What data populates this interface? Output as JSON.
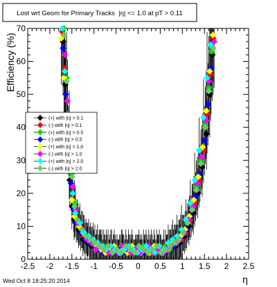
{
  "chart_data": {
    "type": "scatter",
    "title": "Lost wrt Geom for Primary Tracks  |η| <= 1.0 at pT > 0.11",
    "xlabel": "η",
    "ylabel": "Efficiency (%)",
    "xlim": [
      -2.5,
      2.5
    ],
    "ylim": [
      0,
      70
    ],
    "xticks": [
      "-2.5",
      "-2",
      "-1.5",
      "-1",
      "-0.5",
      "0",
      "0.5",
      "1",
      "1.5",
      "2",
      "2.5"
    ],
    "yticks": [
      "0",
      "10",
      "20",
      "30",
      "40",
      "50",
      "60",
      "70"
    ],
    "legend_position": "left-middle",
    "footer": "Wed Oct  8 18:25:20 2014",
    "series": [
      {
        "name": "(+) with |η| > 0.1",
        "color": "#000000",
        "points": [
          [
            -1.7,
            66
          ],
          [
            -1.65,
            53
          ],
          [
            -1.6,
            38
          ],
          [
            -1.55,
            24
          ],
          [
            -1.5,
            16
          ],
          [
            -1.45,
            12
          ],
          [
            -1.35,
            9
          ],
          [
            -1.25,
            6
          ],
          [
            -1.15,
            5
          ],
          [
            -1.05,
            4
          ],
          [
            -0.95,
            3
          ],
          [
            -0.85,
            4
          ],
          [
            -0.75,
            3
          ],
          [
            -0.65,
            2
          ],
          [
            -0.55,
            3
          ],
          [
            -0.45,
            2
          ],
          [
            -0.35,
            3
          ],
          [
            -0.25,
            2
          ],
          [
            -0.15,
            3
          ],
          [
            -0.05,
            2
          ],
          [
            0.05,
            3
          ],
          [
            0.15,
            2
          ],
          [
            0.25,
            3
          ],
          [
            0.35,
            2
          ],
          [
            0.45,
            3
          ],
          [
            0.55,
            2
          ],
          [
            0.65,
            3
          ],
          [
            0.75,
            3
          ],
          [
            0.85,
            4
          ],
          [
            0.95,
            5
          ],
          [
            1.05,
            7
          ],
          [
            1.15,
            10
          ],
          [
            1.25,
            14
          ],
          [
            1.35,
            20
          ],
          [
            1.45,
            28
          ],
          [
            1.55,
            38
          ],
          [
            1.62,
            50
          ],
          [
            1.68,
            62
          ]
        ]
      },
      {
        "name": "(-) with |η| > 0.1",
        "color": "#ff0000",
        "points": [
          [
            -1.72,
            69
          ],
          [
            -1.66,
            58
          ],
          [
            -1.6,
            42
          ],
          [
            -1.54,
            28
          ],
          [
            -1.48,
            18
          ],
          [
            -1.42,
            13
          ],
          [
            -1.32,
            10
          ],
          [
            -1.22,
            7
          ],
          [
            -1.12,
            6
          ],
          [
            -1.02,
            5
          ],
          [
            -0.92,
            4
          ],
          [
            -0.82,
            3
          ],
          [
            -0.72,
            4
          ],
          [
            -0.62,
            3
          ],
          [
            -0.52,
            2
          ],
          [
            -0.42,
            3
          ],
          [
            -0.32,
            2
          ],
          [
            -0.22,
            3
          ],
          [
            -0.12,
            2
          ],
          [
            -0.02,
            3
          ],
          [
            0.08,
            2
          ],
          [
            0.18,
            3
          ],
          [
            0.28,
            2
          ],
          [
            0.38,
            3
          ],
          [
            0.48,
            2
          ],
          [
            0.58,
            4
          ],
          [
            0.68,
            3
          ],
          [
            0.78,
            4
          ],
          [
            0.88,
            5
          ],
          [
            0.98,
            6
          ],
          [
            1.08,
            8
          ],
          [
            1.18,
            12
          ],
          [
            1.28,
            17
          ],
          [
            1.38,
            24
          ],
          [
            1.48,
            33
          ],
          [
            1.56,
            44
          ],
          [
            1.64,
            56
          ],
          [
            1.7,
            67
          ]
        ]
      },
      {
        "name": "(+) with |η| > 0.5",
        "color": "#00dd00",
        "points": [
          [
            -1.68,
            70
          ],
          [
            -1.62,
            55
          ],
          [
            -1.56,
            40
          ],
          [
            -1.5,
            26
          ],
          [
            -1.44,
            17
          ],
          [
            -1.38,
            12
          ],
          [
            -1.28,
            9
          ],
          [
            -1.18,
            7
          ],
          [
            -1.08,
            5
          ],
          [
            -0.98,
            4
          ],
          [
            -0.88,
            3
          ],
          [
            -0.78,
            4
          ],
          [
            -0.68,
            3
          ],
          [
            -0.58,
            2
          ],
          [
            -0.48,
            3
          ],
          [
            -0.38,
            4
          ],
          [
            -0.28,
            2
          ],
          [
            -0.18,
            3
          ],
          [
            -0.08,
            2
          ],
          [
            0.02,
            3
          ],
          [
            0.12,
            4
          ],
          [
            0.22,
            2
          ],
          [
            0.32,
            3
          ],
          [
            0.42,
            2
          ],
          [
            0.52,
            3
          ],
          [
            0.62,
            4
          ],
          [
            0.72,
            3
          ],
          [
            0.82,
            5
          ],
          [
            0.92,
            6
          ],
          [
            1.02,
            8
          ],
          [
            1.12,
            11
          ],
          [
            1.22,
            16
          ],
          [
            1.32,
            22
          ],
          [
            1.42,
            30
          ],
          [
            1.52,
            41
          ],
          [
            1.6,
            52
          ],
          [
            1.66,
            63
          ]
        ]
      },
      {
        "name": "(-) with |η| > 0.5",
        "color": "#0000ff",
        "points": [
          [
            -1.7,
            64
          ],
          [
            -1.64,
            50
          ],
          [
            -1.58,
            36
          ],
          [
            -1.52,
            23
          ],
          [
            -1.46,
            15
          ],
          [
            -1.4,
            11
          ],
          [
            -1.3,
            8
          ],
          [
            -1.2,
            6
          ],
          [
            -1.1,
            5
          ],
          [
            -1.0,
            4
          ],
          [
            -0.9,
            3
          ],
          [
            -0.8,
            2
          ],
          [
            -0.7,
            3
          ],
          [
            -0.6,
            4
          ],
          [
            -0.5,
            2
          ],
          [
            -0.4,
            3
          ],
          [
            -0.3,
            2
          ],
          [
            -0.2,
            3
          ],
          [
            -0.1,
            2
          ],
          [
            0.0,
            3
          ],
          [
            0.1,
            2
          ],
          [
            0.2,
            3
          ],
          [
            0.3,
            4
          ],
          [
            0.4,
            2
          ],
          [
            0.5,
            3
          ],
          [
            0.6,
            2
          ],
          [
            0.7,
            4
          ],
          [
            0.8,
            4
          ],
          [
            0.9,
            5
          ],
          [
            1.0,
            7
          ],
          [
            1.1,
            9
          ],
          [
            1.2,
            13
          ],
          [
            1.3,
            19
          ],
          [
            1.4,
            26
          ],
          [
            1.5,
            36
          ],
          [
            1.58,
            47
          ],
          [
            1.65,
            58
          ]
        ]
      },
      {
        "name": "(+) with |η| > 1.0",
        "color": "#ffff00",
        "points": [
          [
            -1.74,
            67
          ],
          [
            -1.68,
            55
          ],
          [
            -1.62,
            41
          ],
          [
            -1.56,
            27
          ],
          [
            -1.5,
            18
          ],
          [
            -1.44,
            13
          ],
          [
            -1.34,
            10
          ],
          [
            -1.24,
            8
          ],
          [
            -1.14,
            6
          ],
          [
            -1.04,
            5
          ],
          [
            -0.94,
            4
          ],
          [
            -0.84,
            3
          ],
          [
            -0.74,
            2
          ],
          [
            -0.64,
            3
          ],
          [
            -0.54,
            4
          ],
          [
            -0.44,
            2
          ],
          [
            -0.34,
            3
          ],
          [
            -0.24,
            2
          ],
          [
            -0.14,
            4
          ],
          [
            -0.04,
            3
          ],
          [
            0.06,
            2
          ],
          [
            0.16,
            3
          ],
          [
            0.26,
            2
          ],
          [
            0.36,
            4
          ],
          [
            0.46,
            3
          ],
          [
            0.56,
            2
          ],
          [
            0.66,
            3
          ],
          [
            0.76,
            5
          ],
          [
            0.86,
            5
          ],
          [
            0.96,
            7
          ],
          [
            1.06,
            9
          ],
          [
            1.16,
            13
          ],
          [
            1.26,
            18
          ],
          [
            1.36,
            25
          ],
          [
            1.46,
            34
          ],
          [
            1.54,
            45
          ],
          [
            1.62,
            57
          ],
          [
            1.69,
            68
          ]
        ]
      },
      {
        "name": "(-) with |η| > 1.0",
        "color": "#ff00ff",
        "points": [
          [
            -1.66,
            62
          ],
          [
            -1.6,
            48
          ],
          [
            -1.54,
            34
          ],
          [
            -1.48,
            22
          ],
          [
            -1.42,
            15
          ],
          [
            -1.36,
            11
          ],
          [
            -1.26,
            9
          ],
          [
            -1.16,
            6
          ],
          [
            -1.06,
            5
          ],
          [
            -0.96,
            3
          ],
          [
            -0.86,
            4
          ],
          [
            -0.76,
            3
          ],
          [
            -0.66,
            2
          ],
          [
            -0.56,
            3
          ],
          [
            -0.46,
            2
          ],
          [
            -0.36,
            4
          ],
          [
            -0.26,
            3
          ],
          [
            -0.16,
            2
          ],
          [
            -0.06,
            3
          ],
          [
            0.04,
            2
          ],
          [
            0.14,
            3
          ],
          [
            0.24,
            4
          ],
          [
            0.34,
            2
          ],
          [
            0.44,
            3
          ],
          [
            0.54,
            2
          ],
          [
            0.64,
            3
          ],
          [
            0.74,
            4
          ],
          [
            0.84,
            5
          ],
          [
            0.94,
            6
          ],
          [
            1.04,
            8
          ],
          [
            1.14,
            12
          ],
          [
            1.24,
            16
          ],
          [
            1.34,
            23
          ],
          [
            1.44,
            31
          ],
          [
            1.54,
            42
          ],
          [
            1.6,
            54
          ],
          [
            1.72,
            66
          ]
        ]
      },
      {
        "name": "(+) with |η| > 2.0",
        "color": "#00ffff",
        "points": [
          [
            -1.72,
            70
          ],
          [
            -1.66,
            57
          ],
          [
            -1.6,
            44
          ],
          [
            -1.54,
            30
          ],
          [
            -1.48,
            20
          ],
          [
            -1.42,
            14
          ],
          [
            -1.32,
            11
          ],
          [
            -1.22,
            8
          ],
          [
            -1.12,
            7
          ],
          [
            -1.02,
            6
          ],
          [
            -0.92,
            5
          ],
          [
            -0.82,
            4
          ],
          [
            -0.72,
            3
          ],
          [
            -0.62,
            4
          ],
          [
            -0.52,
            3
          ],
          [
            -0.42,
            2
          ],
          [
            -0.32,
            3
          ],
          [
            -0.22,
            4
          ],
          [
            -0.12,
            3
          ],
          [
            -0.02,
            2
          ],
          [
            0.08,
            3
          ],
          [
            0.18,
            4
          ],
          [
            0.28,
            3
          ],
          [
            0.38,
            2
          ],
          [
            0.48,
            4
          ],
          [
            0.58,
            3
          ],
          [
            0.68,
            5
          ],
          [
            0.78,
            6
          ],
          [
            0.88,
            7
          ],
          [
            0.98,
            9
          ],
          [
            1.08,
            12
          ],
          [
            1.18,
            17
          ],
          [
            1.28,
            24
          ],
          [
            1.38,
            33
          ],
          [
            1.48,
            43
          ],
          [
            1.56,
            55
          ],
          [
            1.64,
            65
          ]
        ]
      },
      {
        "name": "(-) with |η| > 2.0",
        "color": "#66cc66",
        "points": [
          [
            -1.68,
            68
          ],
          [
            -1.62,
            54
          ],
          [
            -1.56,
            39
          ],
          [
            -1.5,
            25
          ],
          [
            -1.44,
            16
          ],
          [
            -1.38,
            12
          ],
          [
            -1.28,
            9
          ],
          [
            -1.18,
            7
          ],
          [
            -1.08,
            6
          ],
          [
            -0.98,
            5
          ],
          [
            -0.88,
            4
          ],
          [
            -0.78,
            3
          ],
          [
            -0.68,
            4
          ],
          [
            -0.58,
            2
          ],
          [
            -0.48,
            3
          ],
          [
            -0.38,
            2
          ],
          [
            -0.28,
            4
          ],
          [
            -0.18,
            3
          ],
          [
            -0.08,
            2
          ],
          [
            0.02,
            4
          ],
          [
            0.12,
            3
          ],
          [
            0.22,
            2
          ],
          [
            0.32,
            3
          ],
          [
            0.42,
            4
          ],
          [
            0.52,
            2
          ],
          [
            0.62,
            3
          ],
          [
            0.72,
            4
          ],
          [
            0.82,
            5
          ],
          [
            0.92,
            6
          ],
          [
            1.02,
            8
          ],
          [
            1.12,
            11
          ],
          [
            1.22,
            15
          ],
          [
            1.32,
            21
          ],
          [
            1.42,
            29
          ],
          [
            1.52,
            40
          ],
          [
            1.6,
            51
          ],
          [
            1.7,
            64
          ]
        ]
      }
    ]
  }
}
